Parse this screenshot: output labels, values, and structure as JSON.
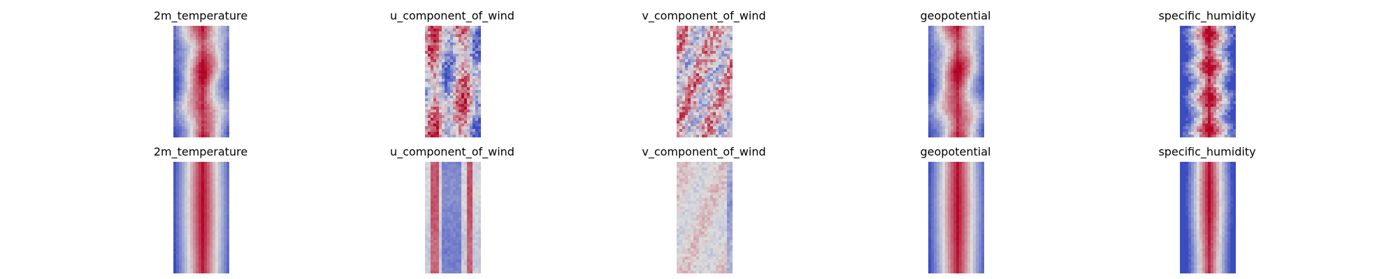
{
  "titles": {
    "row1": [
      "2m_temperature",
      "u_component_of_wind",
      "v_component_of_wind",
      "geopotential",
      "specific_humidity"
    ],
    "row2": [
      "2m_temperature",
      "u_component_of_wind",
      "v_component_of_wind",
      "geopotential",
      "specific_humidity"
    ]
  },
  "colormap": {
    "name": "coolwarm",
    "low": "#3b4cc0",
    "mid": "#dddddd",
    "high": "#b40426"
  },
  "panels": [
    {
      "variable": "2m_temperature",
      "row": 1,
      "pattern": "warm_band"
    },
    {
      "variable": "u_component_of_wind",
      "row": 1,
      "pattern": "mixed_streaks"
    },
    {
      "variable": "v_component_of_wind",
      "row": 1,
      "pattern": "noisy_mixed"
    },
    {
      "variable": "geopotential",
      "row": 1,
      "pattern": "warm_band"
    },
    {
      "variable": "specific_humidity",
      "row": 1,
      "pattern": "humid_core"
    },
    {
      "variable": "2m_temperature",
      "row": 2,
      "pattern": "warm_band_smooth"
    },
    {
      "variable": "u_component_of_wind",
      "row": 2,
      "pattern": "cool_streaks"
    },
    {
      "variable": "v_component_of_wind",
      "row": 2,
      "pattern": "pale_noise"
    },
    {
      "variable": "geopotential",
      "row": 2,
      "pattern": "warm_band_smooth"
    },
    {
      "variable": "specific_humidity",
      "row": 2,
      "pattern": "humid_core_smooth"
    }
  ]
}
